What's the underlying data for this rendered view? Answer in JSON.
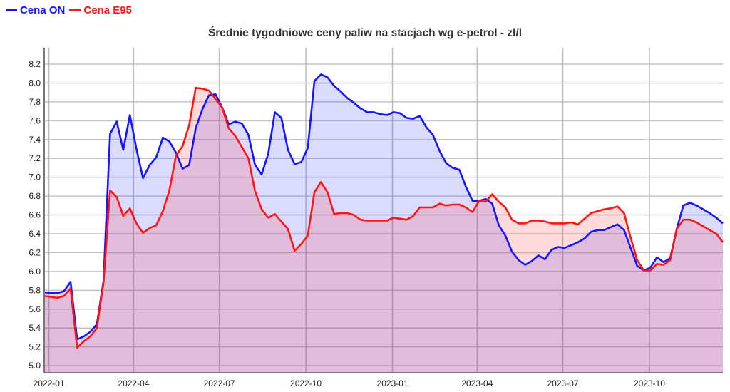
{
  "chart_data": {
    "type": "area",
    "title": "Średnie tygodniowe ceny paliw na stacjach wg e-petrol - zł/l",
    "xlabel": "",
    "ylabel": "",
    "x_start": "2021-12-27",
    "x_step_days": 7,
    "ylim": [
      4.925,
      8.374
    ],
    "yticks": [
      "5.0",
      "5.2",
      "5.4",
      "5.6",
      "5.8",
      "6.0",
      "6.2",
      "6.4",
      "6.6",
      "6.8",
      "7.0",
      "7.2",
      "7.4",
      "7.6",
      "7.8",
      "8.0",
      "8.2"
    ],
    "xticks": [
      "2022-01",
      "2022-04",
      "2022-07",
      "2022-10",
      "2023-01",
      "2023-04",
      "2023-07",
      "2023-10"
    ],
    "grid": true,
    "legend_position": "top-left",
    "series": [
      {
        "name": "Cena ON",
        "color": "#1414ff",
        "fill": "rgba(40,40,255,0.17)",
        "values": [
          5.78,
          5.77,
          5.77,
          5.79,
          5.89,
          5.28,
          5.31,
          5.36,
          5.44,
          5.9,
          7.46,
          7.59,
          7.29,
          7.66,
          7.3,
          6.99,
          7.13,
          7.21,
          7.42,
          7.38,
          7.26,
          7.09,
          7.13,
          7.52,
          7.72,
          7.87,
          7.88,
          7.74,
          7.56,
          7.59,
          7.57,
          7.45,
          7.13,
          7.03,
          7.25,
          7.69,
          7.63,
          7.29,
          7.14,
          7.16,
          7.31,
          8.02,
          8.09,
          8.06,
          7.97,
          7.91,
          7.84,
          7.79,
          7.73,
          7.69,
          7.69,
          7.67,
          7.66,
          7.69,
          7.68,
          7.63,
          7.62,
          7.65,
          7.53,
          7.45,
          7.28,
          7.15,
          7.1,
          7.08,
          6.9,
          6.75,
          6.75,
          6.77,
          6.72,
          6.49,
          6.38,
          6.21,
          6.12,
          6.07,
          6.11,
          6.17,
          6.13,
          6.23,
          6.26,
          6.25,
          6.28,
          6.31,
          6.35,
          6.42,
          6.44,
          6.44,
          6.47,
          6.5,
          6.44,
          6.25,
          6.06,
          6.01,
          6.04,
          6.15,
          6.1,
          6.14,
          6.45,
          6.7,
          6.73,
          6.7,
          6.66,
          6.62,
          6.57,
          6.51
        ]
      },
      {
        "name": "Cena E95",
        "color": "#ff1414",
        "fill": "rgba(255,40,40,0.17)",
        "values": [
          5.74,
          5.73,
          5.72,
          5.74,
          5.82,
          5.19,
          5.26,
          5.31,
          5.4,
          5.88,
          6.86,
          6.79,
          6.59,
          6.67,
          6.51,
          6.41,
          6.46,
          6.49,
          6.64,
          6.86,
          7.23,
          7.33,
          7.55,
          7.95,
          7.94,
          7.92,
          7.83,
          7.74,
          7.52,
          7.44,
          7.32,
          7.2,
          6.85,
          6.66,
          6.57,
          6.61,
          6.53,
          6.45,
          6.22,
          6.29,
          6.38,
          6.84,
          6.95,
          6.84,
          6.61,
          6.62,
          6.62,
          6.6,
          6.55,
          6.54,
          6.54,
          6.54,
          6.54,
          6.57,
          6.56,
          6.55,
          6.59,
          6.68,
          6.68,
          6.68,
          6.72,
          6.7,
          6.71,
          6.71,
          6.68,
          6.63,
          6.75,
          6.74,
          6.82,
          6.74,
          6.68,
          6.55,
          6.51,
          6.51,
          6.54,
          6.54,
          6.53,
          6.51,
          6.51,
          6.51,
          6.52,
          6.5,
          6.56,
          6.62,
          6.64,
          6.66,
          6.67,
          6.69,
          6.62,
          6.36,
          6.12,
          6.01,
          6.01,
          6.08,
          6.07,
          6.12,
          6.45,
          6.55,
          6.55,
          6.52,
          6.48,
          6.44,
          6.4,
          6.31
        ]
      }
    ]
  }
}
